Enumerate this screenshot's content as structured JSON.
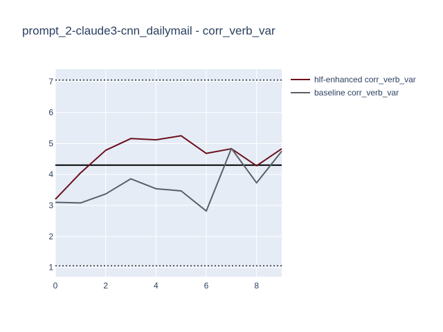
{
  "chart_data": {
    "type": "line",
    "title": "prompt_2-claude3-cnn_dailymail - corr_verb_var",
    "xlabel": "",
    "ylabel": "",
    "xlim": [
      0,
      9
    ],
    "ylim": [
      0.7,
      7.4
    ],
    "x_ticks": [
      0,
      2,
      4,
      6,
      8
    ],
    "y_ticks": [
      1,
      2,
      3,
      4,
      5,
      6,
      7
    ],
    "x": [
      0,
      1,
      2,
      3,
      4,
      5,
      6,
      7,
      8,
      9
    ],
    "series": [
      {
        "name": "hlf-enhanced corr_verb_var",
        "color": "#6b0f1a",
        "values": [
          3.2,
          4.05,
          4.78,
          5.16,
          5.12,
          5.25,
          4.68,
          4.83,
          4.28,
          4.83
        ]
      },
      {
        "name": "baseline corr_verb_var",
        "color": "#5a5f66",
        "values": [
          3.1,
          3.08,
          3.37,
          3.86,
          3.54,
          3.47,
          2.82,
          4.84,
          3.73,
          4.75
        ]
      }
    ],
    "reference_lines": [
      {
        "y": 4.3,
        "style": "solid",
        "color": "#000000"
      },
      {
        "y": 7.05,
        "style": "dotted",
        "color": "#333333"
      },
      {
        "y": 1.05,
        "style": "dotted",
        "color": "#333333"
      }
    ],
    "grid": true,
    "plot_background": "#e5ecf6",
    "legend_position": "top-right"
  }
}
